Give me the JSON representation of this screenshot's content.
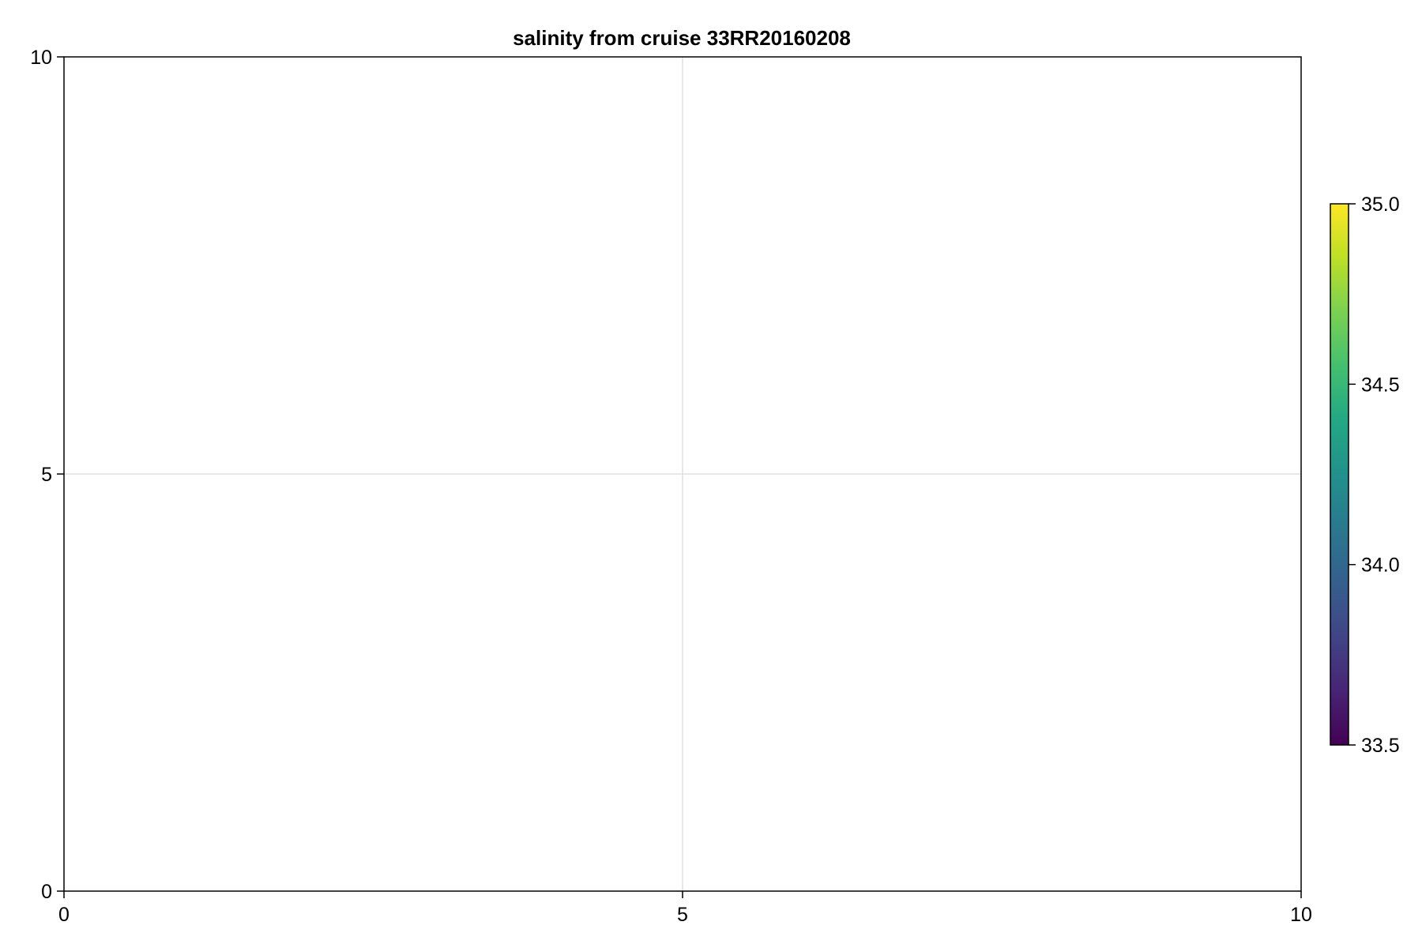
{
  "chart_data": {
    "type": "heatmap",
    "title": "salinity from cruise 33RR20160208",
    "xlabel": "",
    "ylabel": "",
    "xlim": [
      0,
      10
    ],
    "ylim": [
      0,
      10
    ],
    "x_ticks": [
      0,
      5,
      10
    ],
    "y_ticks": [
      0,
      5,
      10
    ],
    "x_tick_labels": [
      "0",
      "5",
      "10"
    ],
    "y_tick_labels": [
      "0",
      "5",
      "10"
    ],
    "grid": true,
    "values": [],
    "colorbar": {
      "colormap": "viridis",
      "range": [
        33.5,
        35.0
      ],
      "ticks": [
        33.5,
        34.0,
        34.5,
        35.0
      ],
      "tick_labels": [
        "33.5",
        "34.0",
        "34.5",
        "35.0"
      ],
      "placement": "right",
      "colors": [
        "#440154",
        "#482475",
        "#414487",
        "#355f8d",
        "#2a788e",
        "#21918c",
        "#22a884",
        "#44bf70",
        "#7ad151",
        "#bddf26",
        "#fde725"
      ]
    }
  }
}
